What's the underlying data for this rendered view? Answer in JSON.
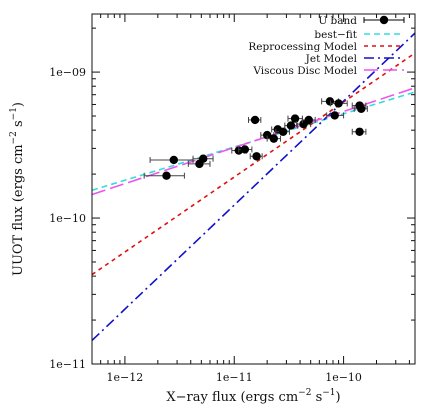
{
  "chart_data": {
    "type": "scatter",
    "xscale": "log",
    "yscale": "log",
    "xlim": [
      5e-13,
      4.5e-10
    ],
    "ylim": [
      1e-11,
      2.5e-09
    ],
    "xlabel_parts": [
      "X−ray flux (ergs cm",
      "−2",
      " s",
      "−1",
      ")"
    ],
    "ylabel_parts": [
      "UUOT flux (ergs cm",
      "−2",
      " s",
      "−1",
      ")"
    ],
    "x_major_ticks": [
      1e-12,
      1e-11,
      1e-10
    ],
    "x_tick_labels": [
      "1e−12",
      "1e−11",
      "1e−10"
    ],
    "y_major_ticks": [
      1e-11,
      1e-10,
      1e-09
    ],
    "y_tick_labels": [
      "1e−11",
      "1e−10",
      "1e−09"
    ],
    "legend_position": "top-right",
    "legend": [
      {
        "label": "U band",
        "style": "point-errorbar",
        "color": "#000000"
      },
      {
        "label": "best−fit",
        "style": "dashed",
        "color": "#33dddd"
      },
      {
        "label": "Reprocessing Model",
        "style": "dotted-dash",
        "color": "#dd1111"
      },
      {
        "label": "Jet Model",
        "style": "dashdot",
        "color": "#1111cc"
      },
      {
        "label": "Viscous Disc Model",
        "style": "longdash",
        "color": "#ee55ee"
      }
    ],
    "points": [
      {
        "x": 2.4e-12,
        "y": 1.95e-10,
        "xerr": [
          1.5e-12,
          3.5e-12
        ]
      },
      {
        "x": 2.8e-12,
        "y": 2.5e-10,
        "xerr": [
          1.7e-12,
          4.2e-12
        ]
      },
      {
        "x": 4.8e-12,
        "y": 2.35e-10,
        "xerr": [
          3.8e-12,
          6e-12
        ]
      },
      {
        "x": 5.2e-12,
        "y": 2.55e-10,
        "xerr": [
          4.2e-12,
          6.4e-12
        ]
      },
      {
        "x": 1.1e-11,
        "y": 2.9e-10,
        "xerr": [
          9.5e-12,
          1.3e-11
        ]
      },
      {
        "x": 1.25e-11,
        "y": 2.95e-10,
        "xerr": [
          1.1e-11,
          1.45e-11
        ]
      },
      {
        "x": 1.6e-11,
        "y": 2.65e-10,
        "xerr": [
          1.4e-11,
          1.8e-11
        ]
      },
      {
        "x": 1.55e-11,
        "y": 4.7e-10,
        "xerr": [
          1.35e-11,
          1.75e-11
        ]
      },
      {
        "x": 2e-11,
        "y": 3.7e-10,
        "xerr": [
          1.75e-11,
          2.3e-11
        ]
      },
      {
        "x": 2.3e-11,
        "y": 3.5e-10,
        "xerr": [
          2e-11,
          2.65e-11
        ]
      },
      {
        "x": 2.5e-11,
        "y": 4.05e-10,
        "xerr": [
          2.2e-11,
          2.9e-11
        ]
      },
      {
        "x": 2.8e-11,
        "y": 3.9e-10,
        "xerr": [
          2.4e-11,
          3.2e-11
        ]
      },
      {
        "x": 3.3e-11,
        "y": 4.3e-10,
        "xerr": [
          2.9e-11,
          3.8e-11
        ]
      },
      {
        "x": 3.6e-11,
        "y": 4.8e-10,
        "xerr": [
          3.1e-11,
          4.2e-11
        ]
      },
      {
        "x": 4.3e-11,
        "y": 4.4e-10,
        "xerr": [
          3.7e-11,
          5e-11
        ]
      },
      {
        "x": 4.8e-11,
        "y": 4.7e-10,
        "xerr": [
          4.2e-11,
          5.5e-11
        ]
      },
      {
        "x": 7.5e-11,
        "y": 6.3e-10,
        "xerr": [
          6.3e-11,
          9e-11
        ]
      },
      {
        "x": 8.3e-11,
        "y": 5.05e-10,
        "xerr": [
          7e-11,
          1e-10
        ]
      },
      {
        "x": 9e-11,
        "y": 6.1e-10,
        "xerr": [
          7.6e-11,
          1.08e-10
        ]
      },
      {
        "x": 1.4e-10,
        "y": 5.9e-10,
        "xerr": [
          1.2e-10,
          1.6e-10
        ]
      },
      {
        "x": 1.45e-10,
        "y": 5.6e-10,
        "xerr": [
          1.25e-10,
          1.65e-10
        ]
      },
      {
        "x": 1.4e-10,
        "y": 3.9e-10,
        "xerr": [
          1.2e-10,
          1.6e-10
        ]
      }
    ],
    "lines": [
      {
        "name": "best−fit",
        "color": "#33dddd",
        "dash": "6,4",
        "points": [
          [
            5e-13,
            1.55e-10
          ],
          [
            4.5e-10,
            7.3e-10
          ]
        ]
      },
      {
        "name": "Reprocessing Model",
        "color": "#dd1111",
        "dash": "4,4",
        "points": [
          [
            5e-13,
            4.1e-11
          ],
          [
            4.5e-10,
            1.35e-09
          ]
        ]
      },
      {
        "name": "Jet Model",
        "color": "#1111cc",
        "dash": "10,4,2,4",
        "points": [
          [
            5e-13,
            1.45e-11
          ],
          [
            4.5e-10,
            1.85e-09
          ]
        ]
      },
      {
        "name": "Viscous Disc Model",
        "color": "#ee55ee",
        "dash": "14,5",
        "points": [
          [
            5e-13,
            1.45e-10
          ],
          [
            4.5e-10,
            7.8e-10
          ]
        ]
      }
    ]
  }
}
